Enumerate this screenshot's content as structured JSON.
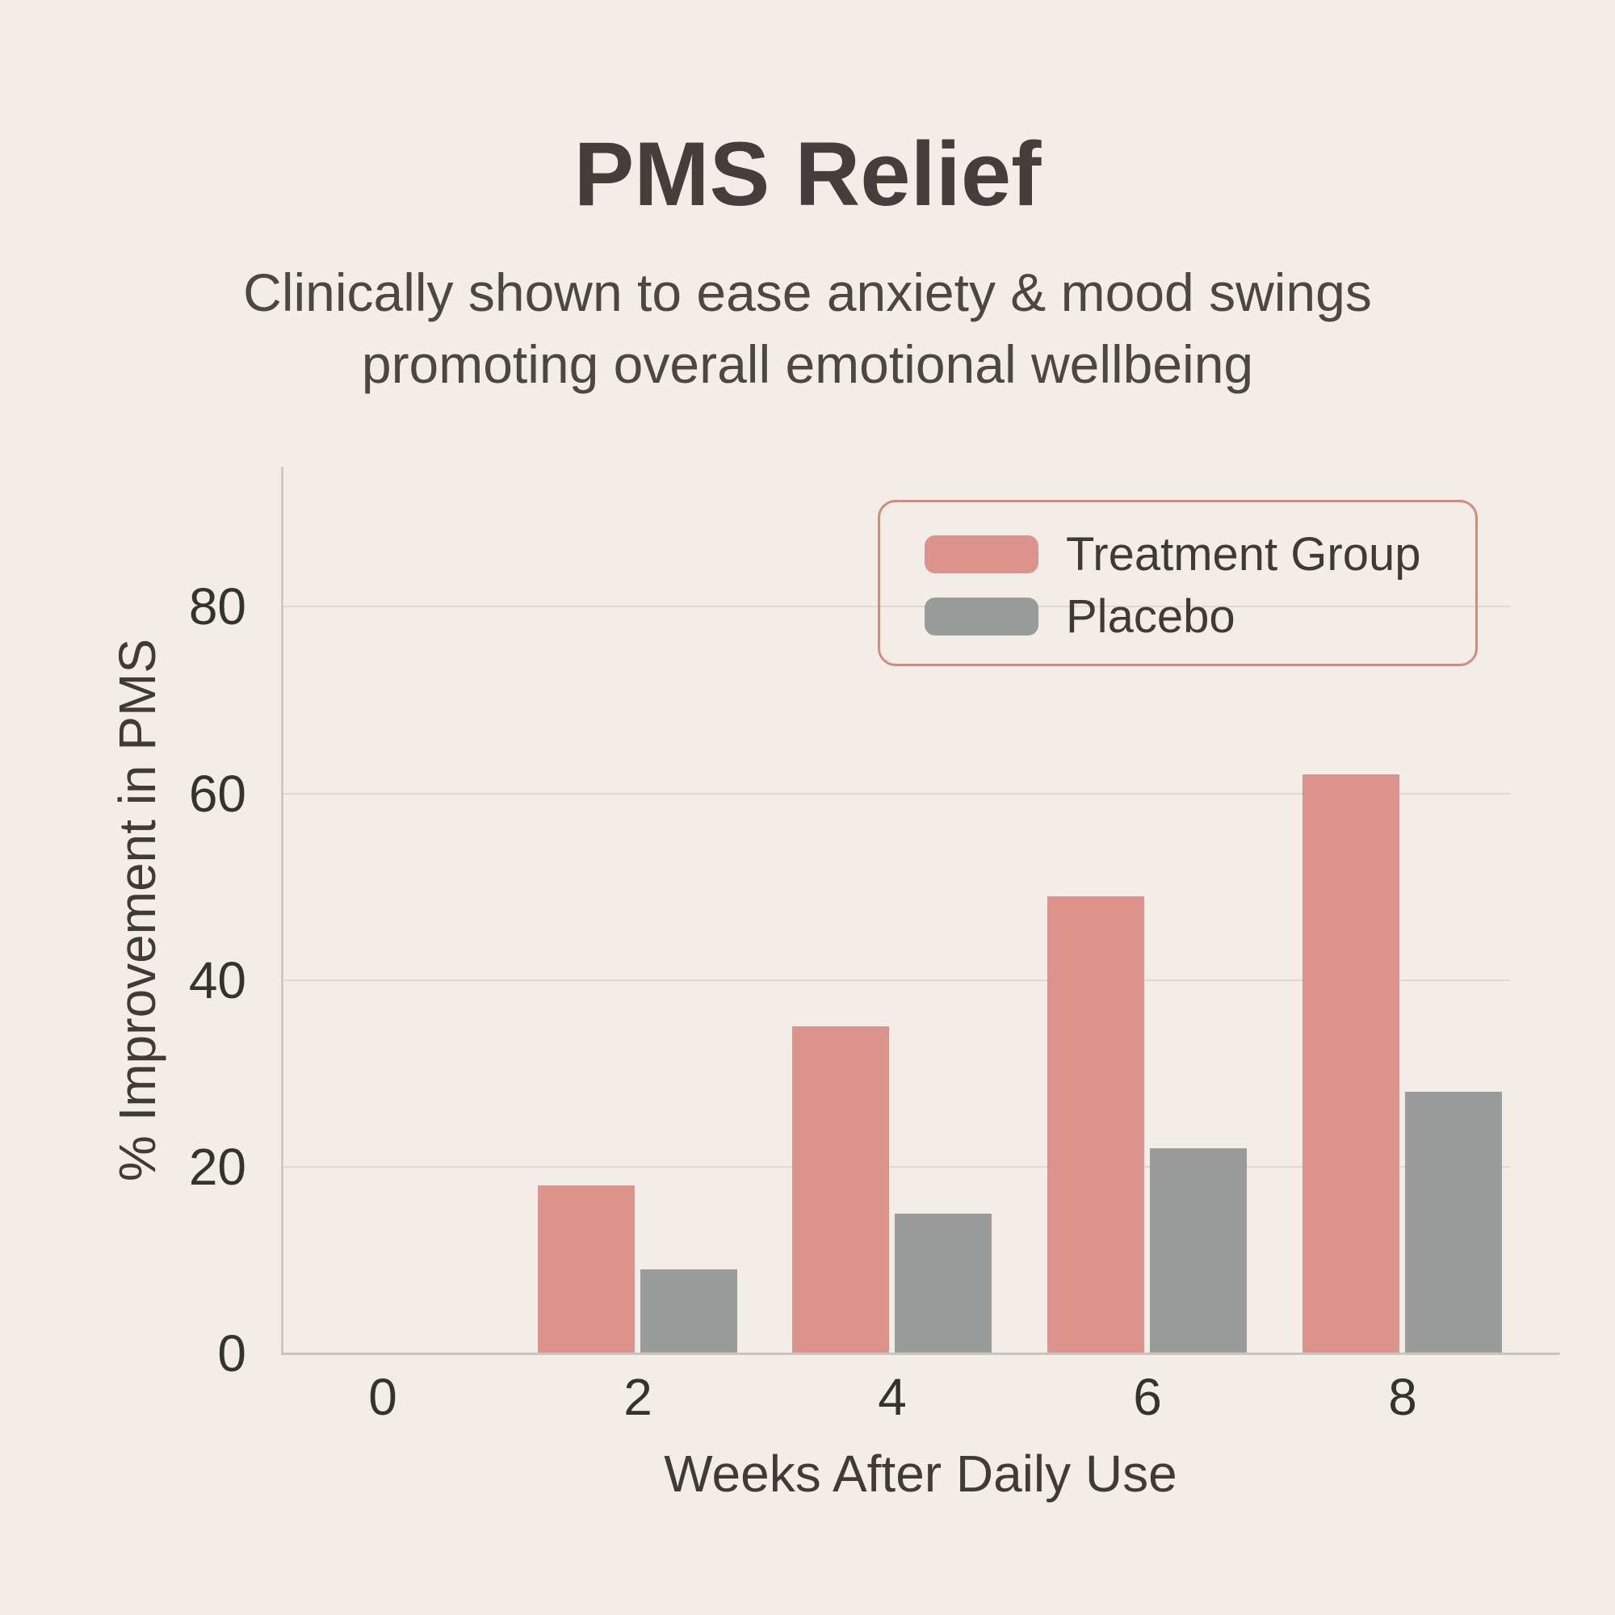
{
  "page": {
    "background_color": "#F2EEE7"
  },
  "header": {
    "title": "PMS Relief",
    "subtitle_line1": "Clinically shown to ease anxiety & mood swings",
    "subtitle_line2": "promoting overall emotional wellbeing"
  },
  "chart_data": {
    "type": "bar",
    "title": "PMS Relief",
    "categories": [
      "0",
      "2",
      "4",
      "6",
      "8"
    ],
    "series": [
      {
        "name": "Treatment Group",
        "color": "#DC938C",
        "values": [
          0,
          18,
          35,
          49,
          62
        ]
      },
      {
        "name": "Placebo",
        "color": "#9A9C9C",
        "values": [
          0,
          9,
          15,
          22,
          28
        ]
      }
    ],
    "xlabel": "Weeks After Daily Use",
    "ylabel": "% Improvement in PMS",
    "ylim": [
      0,
      95
    ],
    "yticks": [
      0,
      20,
      40,
      60,
      80
    ],
    "grid": true,
    "legend_position": "top-right",
    "legend_border_color": "#D8897D",
    "gridline_color": "#DEDAD3",
    "axis_line_color": "#C8C4BE",
    "tick_text_color": "#333330",
    "title_text_color": "#443F3C",
    "subtitle_text_color": "#4A4744"
  }
}
